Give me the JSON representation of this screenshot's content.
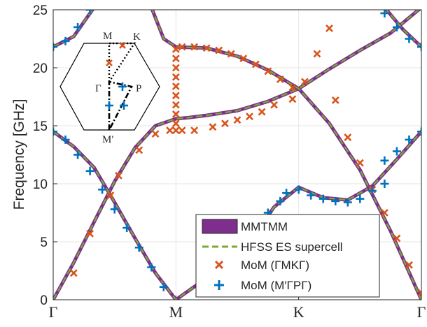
{
  "chart_data": {
    "type": "line",
    "title": "",
    "xlabel": "",
    "ylabel": "Frequency [GHz]",
    "xlim": [
      0,
      3
    ],
    "ylim": [
      0,
      25
    ],
    "grid": true,
    "x_tick_positions": [
      0,
      1,
      2,
      3
    ],
    "x_tick_labels": [
      "Γ",
      "M",
      "K",
      "Γ"
    ],
    "y_ticks": [
      0,
      5,
      10,
      15,
      20,
      25
    ],
    "legend": {
      "placement": "bottom-right",
      "entries": [
        "MMTMM",
        "HFSS ES supercell",
        "MoM (ΓMKΓ)",
        "MoM (M′ΓPΓ)"
      ]
    },
    "series": [
      {
        "name": "MMTMM",
        "style": "thick-line",
        "color": "#7e2f8e",
        "bands": [
          [
            [
              0,
              0
            ],
            [
              0.167,
              3.2
            ],
            [
              0.333,
              6.7
            ],
            [
              0.5,
              10.2
            ],
            [
              0.667,
              13.1
            ],
            [
              0.833,
              15.0
            ],
            [
              1,
              15.6
            ],
            [
              1.1,
              15.7
            ],
            [
              1.25,
              15.9
            ],
            [
              1.5,
              16.3
            ],
            [
              1.75,
              17.1
            ],
            [
              2,
              18.2
            ],
            [
              2.25,
              19.9
            ],
            [
              2.5,
              21.5
            ],
            [
              2.75,
              23.0
            ],
            [
              3,
              25.2
            ]
          ],
          [
            [
              0,
              14.5
            ],
            [
              0.167,
              13.2
            ],
            [
              0.333,
              11.4
            ],
            [
              0.5,
              8.4
            ],
            [
              0.667,
              5.3
            ],
            [
              0.833,
              2.3
            ],
            [
              1,
              0
            ],
            [
              1.2,
              1.5
            ],
            [
              1.4,
              2.8
            ],
            [
              1.6,
              5.0
            ],
            [
              1.8,
              8.0
            ],
            [
              2,
              9.7
            ],
            [
              2.2,
              8.8
            ],
            [
              2.4,
              8.6
            ],
            [
              2.6,
              9.8
            ],
            [
              2.8,
              12.1
            ],
            [
              3,
              14.5
            ]
          ],
          [
            [
              0,
              21.8
            ],
            [
              0.167,
              22.7
            ],
            [
              0.333,
              25.2
            ]
          ],
          [
            [
              0.8,
              25.2
            ],
            [
              0.9,
              22.5
            ],
            [
              1,
              21.8
            ],
            [
              1.25,
              21.7
            ],
            [
              1.5,
              21.0
            ],
            [
              1.75,
              19.8
            ],
            [
              2,
              18.2
            ],
            [
              2.25,
              15.2
            ],
            [
              2.5,
              11.2
            ],
            [
              2.75,
              5.9
            ],
            [
              3,
              0
            ]
          ],
          [
            [
              2.7,
              25.2
            ],
            [
              2.85,
              23.3
            ],
            [
              3,
              21.8
            ]
          ]
        ]
      },
      {
        "name": "HFSS ES supercell",
        "style": "dashed-line",
        "color": "#77ac30"
      },
      {
        "name": "MoM (ΓMKΓ)",
        "marker": "x",
        "color": "#d95319",
        "points": [
          [
            0.167,
            2.3
          ],
          [
            0.3,
            5.7
          ],
          [
            0.467,
            9.0
          ],
          [
            0.533,
            10.7
          ],
          [
            0.7,
            12.9
          ],
          [
            0.833,
            14.3
          ],
          [
            0.95,
            14.6
          ],
          [
            1,
            14.6
          ],
          [
            1,
            15.2
          ],
          [
            1,
            16.0
          ],
          [
            1,
            16.8
          ],
          [
            1,
            17.6
          ],
          [
            1,
            18.4
          ],
          [
            1,
            19.2
          ],
          [
            1,
            20.0
          ],
          [
            1,
            20.8
          ],
          [
            1,
            21.6
          ],
          [
            1.05,
            14.6
          ],
          [
            1.15,
            14.6
          ],
          [
            1.3,
            14.9
          ],
          [
            1.4,
            15.2
          ],
          [
            1.5,
            15.5
          ],
          [
            1.6,
            15.8
          ],
          [
            1.7,
            16.2
          ],
          [
            1.8,
            16.8
          ],
          [
            1.95,
            17.3
          ],
          [
            1.05,
            21.8
          ],
          [
            1.15,
            21.8
          ],
          [
            1.25,
            21.7
          ],
          [
            1.35,
            21.5
          ],
          [
            1.45,
            21.2
          ],
          [
            1.55,
            20.8
          ],
          [
            1.65,
            20.3
          ],
          [
            1.75,
            19.7
          ],
          [
            1.85,
            19.0
          ],
          [
            1.95,
            18.3
          ],
          [
            2.05,
            18.8
          ],
          [
            2.15,
            21.2
          ],
          [
            2.25,
            23.4
          ],
          [
            2.3,
            17.2
          ],
          [
            2.4,
            14.0
          ],
          [
            2.5,
            11.8
          ],
          [
            2.6,
            9.5
          ],
          [
            2.7,
            7.5
          ],
          [
            2.8,
            5.3
          ],
          [
            2.9,
            3.0
          ],
          [
            3,
            0.6
          ]
        ]
      },
      {
        "name": "MoM (M′ΓPΓ)",
        "marker": "+",
        "color": "#0072bd",
        "points": [
          [
            0,
            14.5
          ],
          [
            0.1,
            13.8
          ],
          [
            0.2,
            12.5
          ],
          [
            0.3,
            11.1
          ],
          [
            0.4,
            9.5
          ],
          [
            0.5,
            7.8
          ],
          [
            0.6,
            6.2
          ],
          [
            0.7,
            4.5
          ],
          [
            0.8,
            2.8
          ],
          [
            0.9,
            1.1
          ],
          [
            0,
            21.8
          ],
          [
            0.1,
            22.3
          ],
          [
            0.2,
            23.5
          ],
          [
            0.3,
            25.0
          ],
          [
            1.25,
            1.5
          ],
          [
            1.5,
            3.3
          ],
          [
            1.75,
            7.5
          ],
          [
            1.85,
            8.5
          ],
          [
            1.9,
            9.2
          ],
          [
            2.0,
            9.5
          ],
          [
            2.1,
            9.0
          ],
          [
            2.2,
            8.7
          ],
          [
            2.3,
            8.5
          ],
          [
            2.4,
            8.4
          ],
          [
            2.5,
            8.7
          ],
          [
            2.6,
            9.4
          ],
          [
            2.7,
            10.0
          ],
          [
            2.7,
            12.0
          ],
          [
            2.8,
            12.8
          ],
          [
            2.9,
            13.8
          ],
          [
            3,
            14.5
          ],
          [
            2.7,
            24.7
          ],
          [
            2.8,
            23.5
          ],
          [
            2.9,
            22.5
          ],
          [
            3,
            21.8
          ]
        ]
      }
    ],
    "inset": {
      "vertex_labels": [
        "M",
        "K",
        "Γ",
        "P",
        "M′"
      ],
      "colors": {
        "outline": "#000000",
        "x_marks": "#d95319",
        "plus_marks": "#0072bd"
      }
    }
  }
}
